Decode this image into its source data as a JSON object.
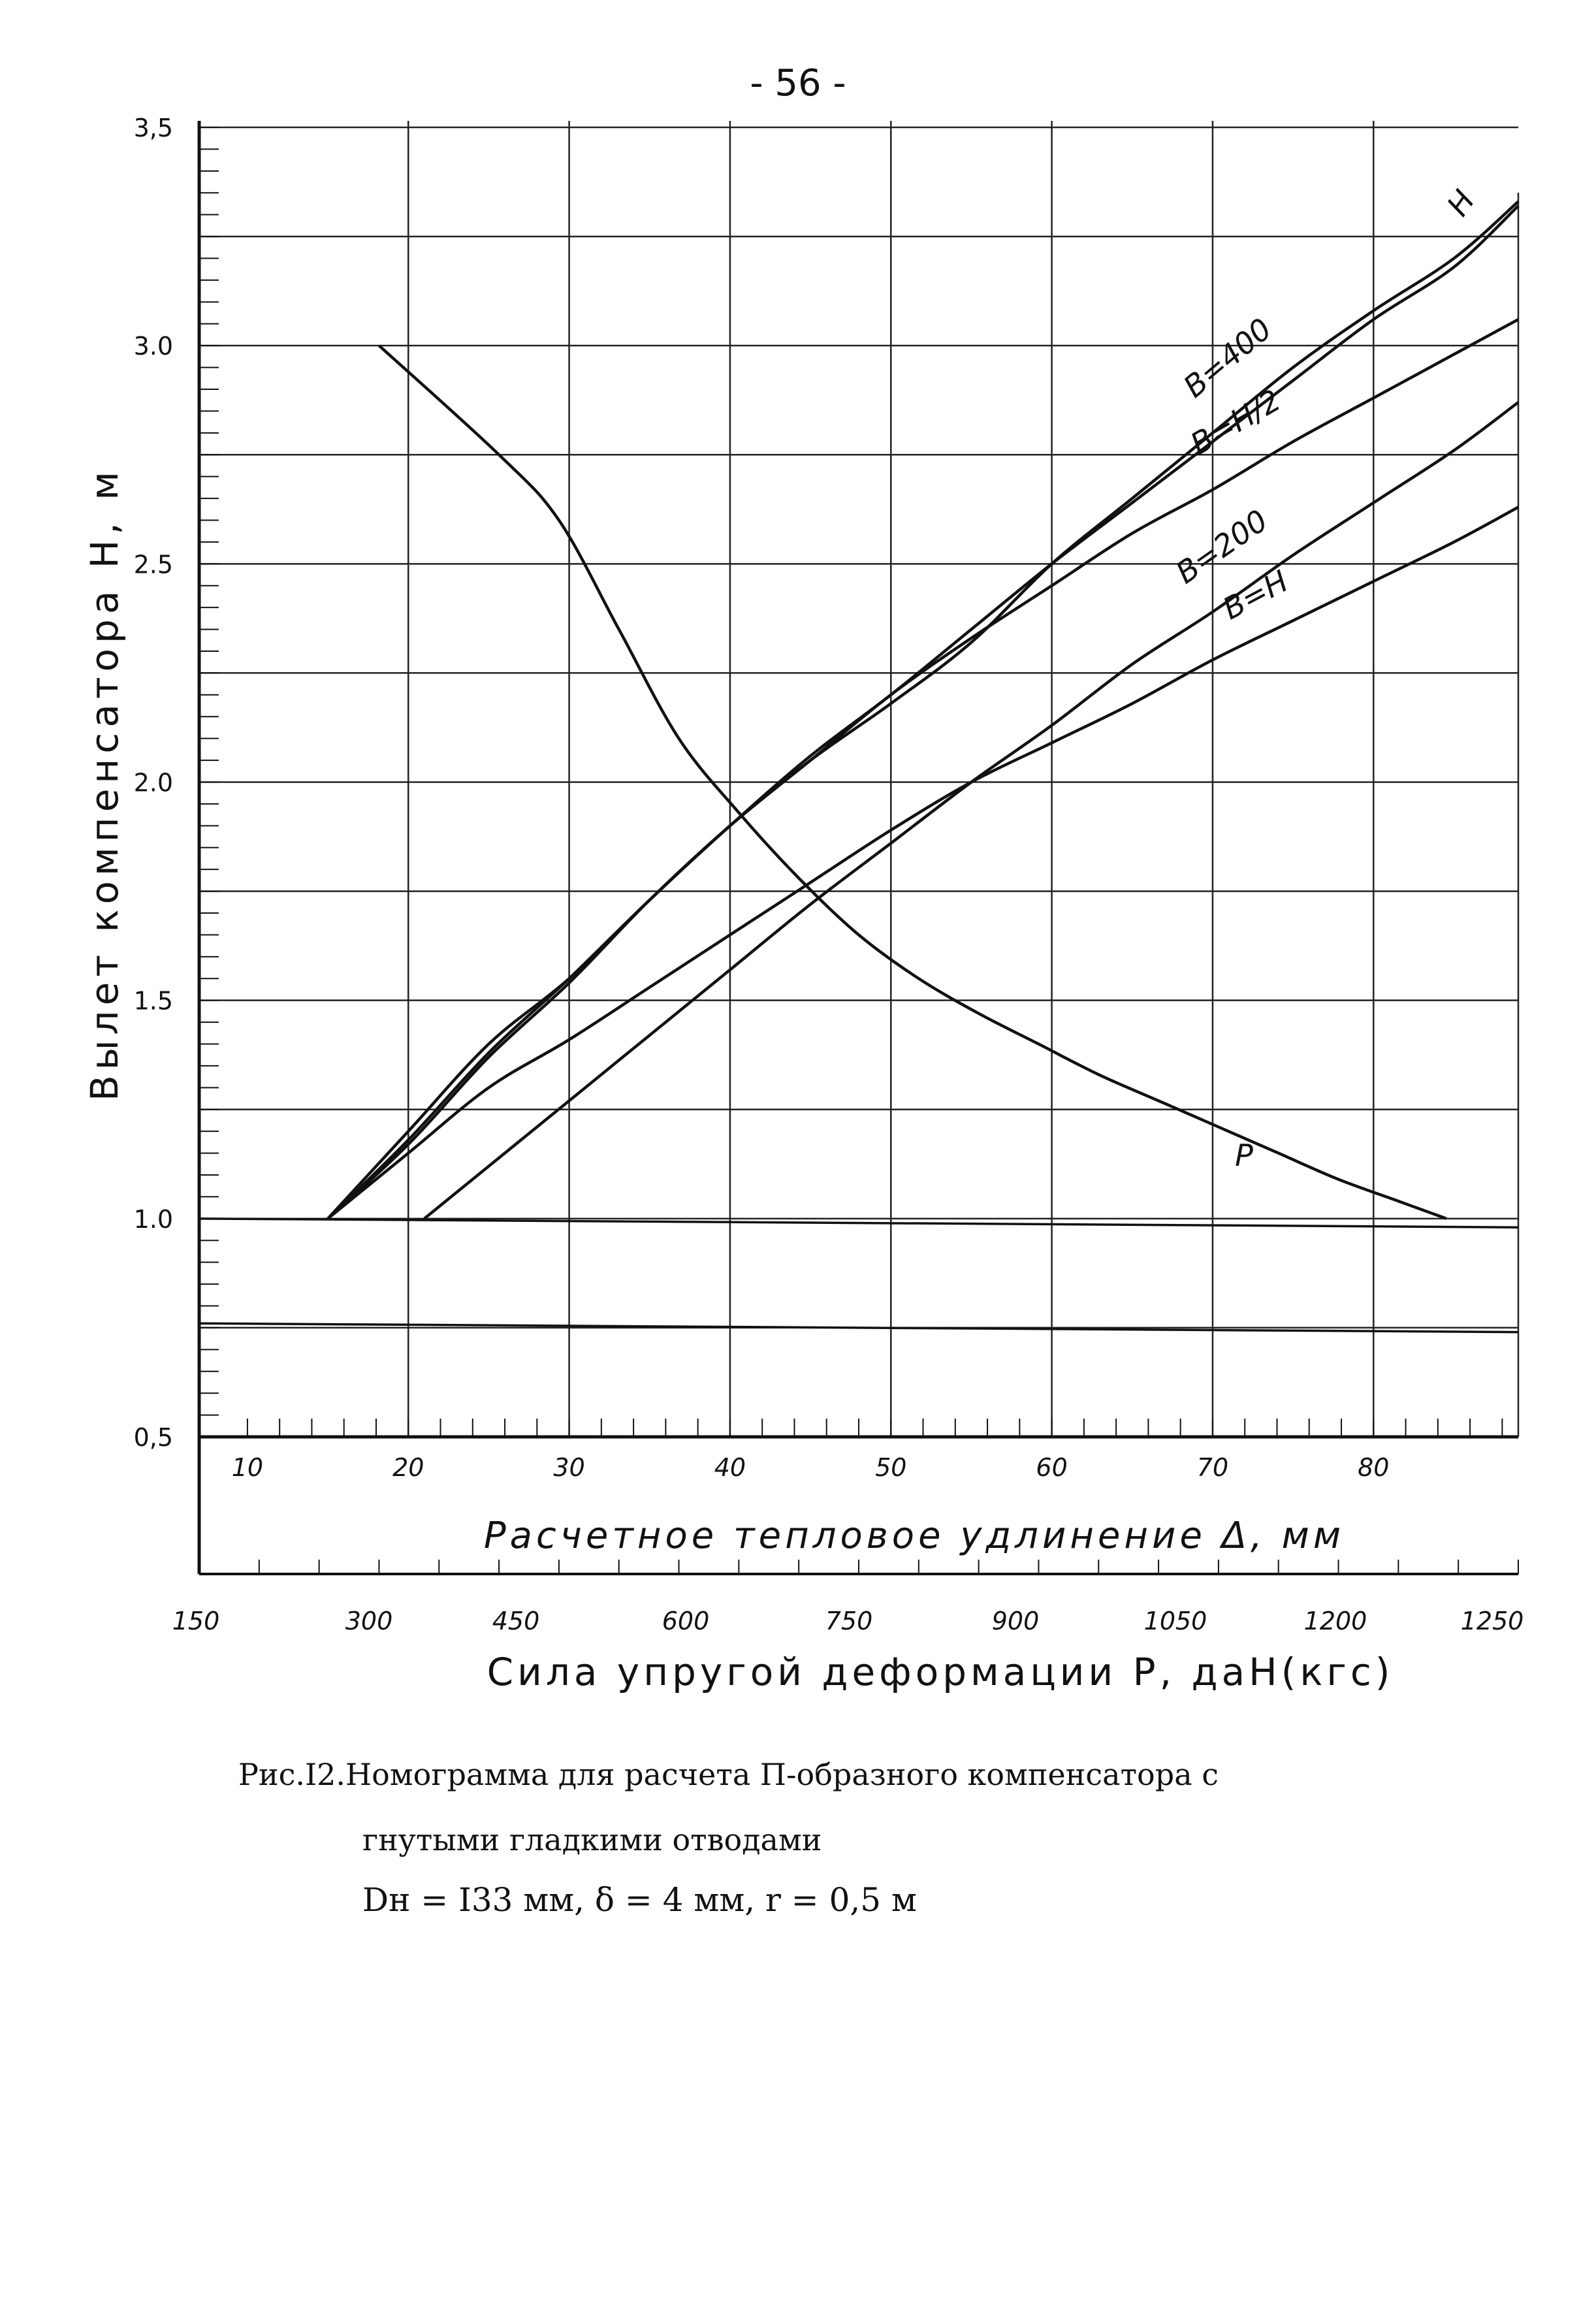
{
  "page_number": "- 56 -",
  "caption": {
    "line1": "Рис.I2.Номограмма для расчета П-образного компенсатора с",
    "line2": "гнутыми гладкими отводами",
    "line3": "Dн = I33 мм, δ = 4 мм, r = 0,5 м"
  },
  "chart_data": {
    "type": "line",
    "ylabel": "Вылет компенсатора H, м",
    "xlabel": "Расчетное тепловое удлинение Δ, мм",
    "x2label": "Сила упругой деформации P, даН(кгс)",
    "ylim": [
      0.5,
      3.5
    ],
    "xlim": [
      7,
      89
    ],
    "x2lim": [
      150,
      1250
    ],
    "yticks": [
      "0,5",
      "1.0",
      "1.5",
      "2.0",
      "2.5",
      "3.0",
      "3,5"
    ],
    "xticks": [
      "10",
      "20",
      "30",
      "40",
      "50",
      "60",
      "70",
      "80"
    ],
    "x2ticks": [
      "150",
      "300",
      "450",
      "600",
      "750",
      "900",
      "1050",
      "1200",
      "1250"
    ],
    "grid": true,
    "series": [
      {
        "name": "H",
        "label_display": "H",
        "x": [
          15,
          20,
          25,
          30,
          35,
          40,
          45,
          50,
          55,
          60,
          65,
          70,
          75,
          80,
          85,
          89
        ],
        "y": [
          1.0,
          1.2,
          1.4,
          1.55,
          1.73,
          1.9,
          2.05,
          2.18,
          2.32,
          2.5,
          2.65,
          2.8,
          2.95,
          3.08,
          3.2,
          3.33
        ]
      },
      {
        "name": "B=400",
        "label_display": "B=400",
        "x": [
          15,
          20,
          25,
          30,
          35,
          40,
          45,
          50,
          55,
          60,
          65,
          70,
          75,
          80,
          85,
          89
        ],
        "y": [
          1.0,
          1.18,
          1.38,
          1.55,
          1.73,
          1.9,
          2.06,
          2.2,
          2.35,
          2.5,
          2.64,
          2.78,
          2.92,
          3.06,
          3.18,
          3.32
        ]
      },
      {
        "name": "B=H/2",
        "label_display": "B=H/2",
        "x": [
          15,
          20,
          25,
          30,
          35,
          40,
          45,
          50,
          55,
          60,
          65,
          70,
          75,
          80,
          85,
          89
        ],
        "y": [
          1.0,
          1.17,
          1.37,
          1.54,
          1.73,
          1.9,
          2.05,
          2.2,
          2.33,
          2.45,
          2.57,
          2.67,
          2.78,
          2.88,
          2.98,
          3.06
        ]
      },
      {
        "name": "B=200",
        "label_display": "B=200",
        "x": [
          21,
          25,
          30,
          35,
          40,
          45,
          50,
          55,
          60,
          65,
          70,
          75,
          80,
          85,
          89
        ],
        "y": [
          1.0,
          1.12,
          1.27,
          1.42,
          1.57,
          1.72,
          1.86,
          2.0,
          2.13,
          2.27,
          2.39,
          2.52,
          2.64,
          2.76,
          2.87
        ]
      },
      {
        "name": "B=H",
        "label_display": "B=H",
        "x": [
          15,
          20,
          25,
          30,
          35,
          40,
          45,
          50,
          55,
          60,
          65,
          70,
          75,
          80,
          85,
          89
        ],
        "y": [
          1.0,
          1.15,
          1.3,
          1.41,
          1.53,
          1.65,
          1.77,
          1.89,
          2.0,
          2.09,
          2.18,
          2.28,
          2.37,
          2.46,
          2.55,
          2.63
        ]
      },
      {
        "name": "P",
        "label_display": "P",
        "x2": [
          300,
          400,
          450,
          500,
          550,
          600,
          650,
          700,
          750,
          800,
          850,
          900,
          950,
          1000,
          1050,
          1100,
          1150,
          1190
        ],
        "y": [
          3.0,
          2.75,
          2.6,
          2.35,
          2.1,
          1.93,
          1.78,
          1.65,
          1.55,
          1.47,
          1.4,
          1.33,
          1.27,
          1.21,
          1.15,
          1.09,
          1.04,
          1.0
        ]
      }
    ],
    "reference_lines": [
      {
        "y_start": 1.0,
        "y_end": 0.98
      },
      {
        "y_start": 0.76,
        "y_end": 0.74
      }
    ]
  }
}
